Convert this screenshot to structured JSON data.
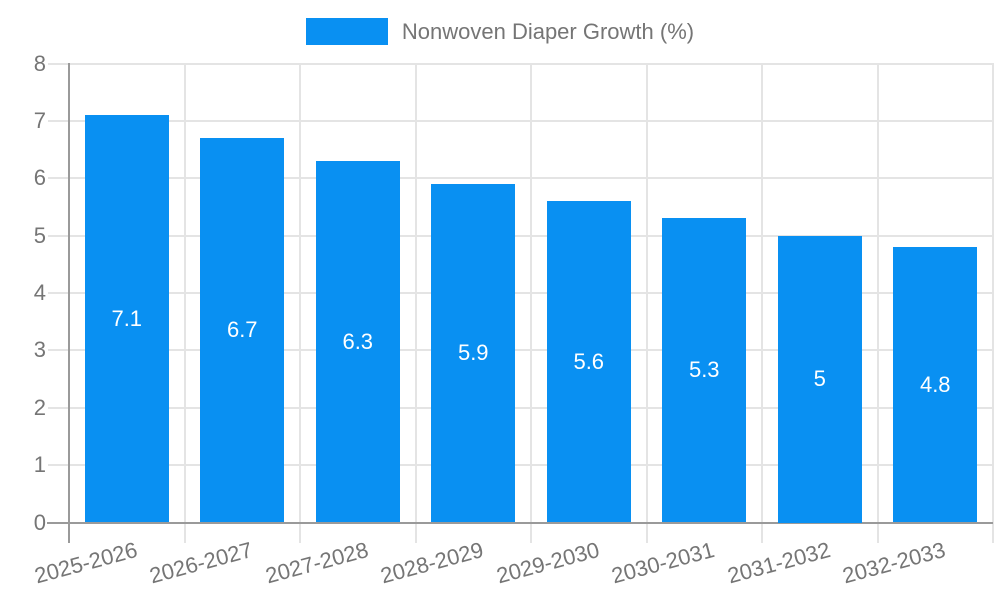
{
  "chart_data": {
    "type": "bar",
    "title": "",
    "legend_label": "Nonwoven Diaper Growth (%)",
    "legend_position": "top",
    "categories": [
      "2025-2026",
      "2026-2027",
      "2027-2028",
      "2028-2029",
      "2029-2030",
      "2030-2031",
      "2031-2032",
      "2032-2033"
    ],
    "values": [
      7.1,
      6.7,
      6.3,
      5.9,
      5.6,
      5.3,
      5,
      4.8
    ],
    "bar_labels": [
      "7.1",
      "6.7",
      "6.3",
      "5.9",
      "5.6",
      "5.3",
      "5",
      "4.8"
    ],
    "xlabel": "",
    "ylabel": "",
    "ylim": [
      0,
      8
    ],
    "yticks": [
      "0",
      "1",
      "2",
      "3",
      "4",
      "5",
      "6",
      "7",
      "8"
    ],
    "grid": true,
    "colors": {
      "bar": "#0990f2",
      "axis": "#9a9a9a",
      "gridline": "#e4e4e4",
      "tick_label": "#757575",
      "bar_label": "#ffffff",
      "background": "#ffffff"
    }
  }
}
